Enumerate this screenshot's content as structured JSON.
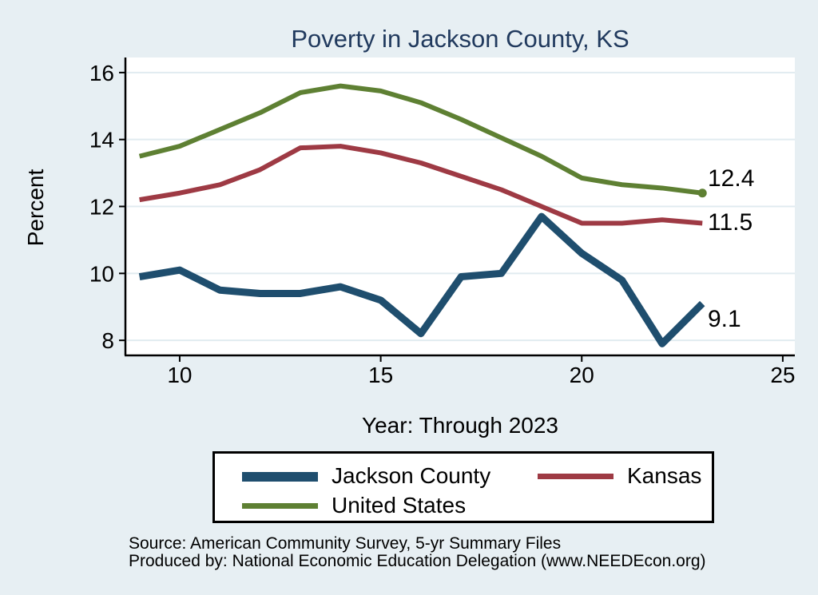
{
  "chart_data": {
    "type": "line",
    "title": "Poverty in Jackson County, KS",
    "xlabel": "Year: Through 2023",
    "ylabel": "Percent",
    "x": [
      9,
      10,
      11,
      12,
      13,
      14,
      15,
      16,
      17,
      18,
      19,
      20,
      21,
      22,
      23
    ],
    "series": [
      {
        "name": "United States",
        "color": "#5e8033",
        "line_width": 6,
        "endpoint_dot": true,
        "values": [
          13.5,
          13.8,
          14.3,
          14.8,
          15.4,
          15.6,
          15.45,
          15.1,
          14.6,
          14.05,
          13.5,
          12.85,
          12.65,
          12.55,
          12.4
        ]
      },
      {
        "name": "Kansas",
        "color": "#9e3a44",
        "line_width": 6,
        "endpoint_dot": false,
        "values": [
          12.2,
          12.4,
          12.65,
          13.1,
          13.75,
          13.8,
          13.6,
          13.3,
          12.9,
          12.5,
          12.0,
          11.5,
          11.5,
          11.6,
          11.5
        ]
      },
      {
        "name": "Jackson County",
        "color": "#1f4e6e",
        "line_width": 9,
        "endpoint_dot": false,
        "values": [
          9.9,
          10.1,
          9.5,
          9.4,
          9.4,
          9.6,
          9.2,
          8.2,
          9.9,
          10.0,
          11.7,
          10.6,
          9.8,
          7.9,
          9.1
        ]
      }
    ],
    "x_ticks": [
      10,
      15,
      20,
      25
    ],
    "y_ticks": [
      8,
      10,
      12,
      14,
      16
    ],
    "xlim": [
      8.65,
      25.3
    ],
    "ylim": [
      7.55,
      16.45
    ],
    "grid": "horizontal-only",
    "legend_position": "bottom",
    "end_labels": [
      {
        "series": "United States",
        "text": "12.4"
      },
      {
        "series": "Kansas",
        "text": "11.5"
      },
      {
        "series": "Jackson County",
        "text": "9.1"
      }
    ]
  },
  "legend": {
    "items": [
      {
        "label": "Jackson County",
        "color": "#1f4e6e"
      },
      {
        "label": "Kansas",
        "color": "#9e3a44"
      },
      {
        "label": "United States",
        "color": "#5e8033"
      }
    ]
  },
  "footer": {
    "source_line": "Source: American Community Survey, 5-yr Summary Files",
    "produced_line": "Produced by: National Economic Education Delegation (www.NEEDEcon.org)"
  },
  "colors": {
    "background": "#e7eff3",
    "plot_background": "#ffffff",
    "title_text": "#213a5e",
    "axis_line": "#000000",
    "axis_text": "#000000",
    "gridline": "#e1ebf0"
  }
}
